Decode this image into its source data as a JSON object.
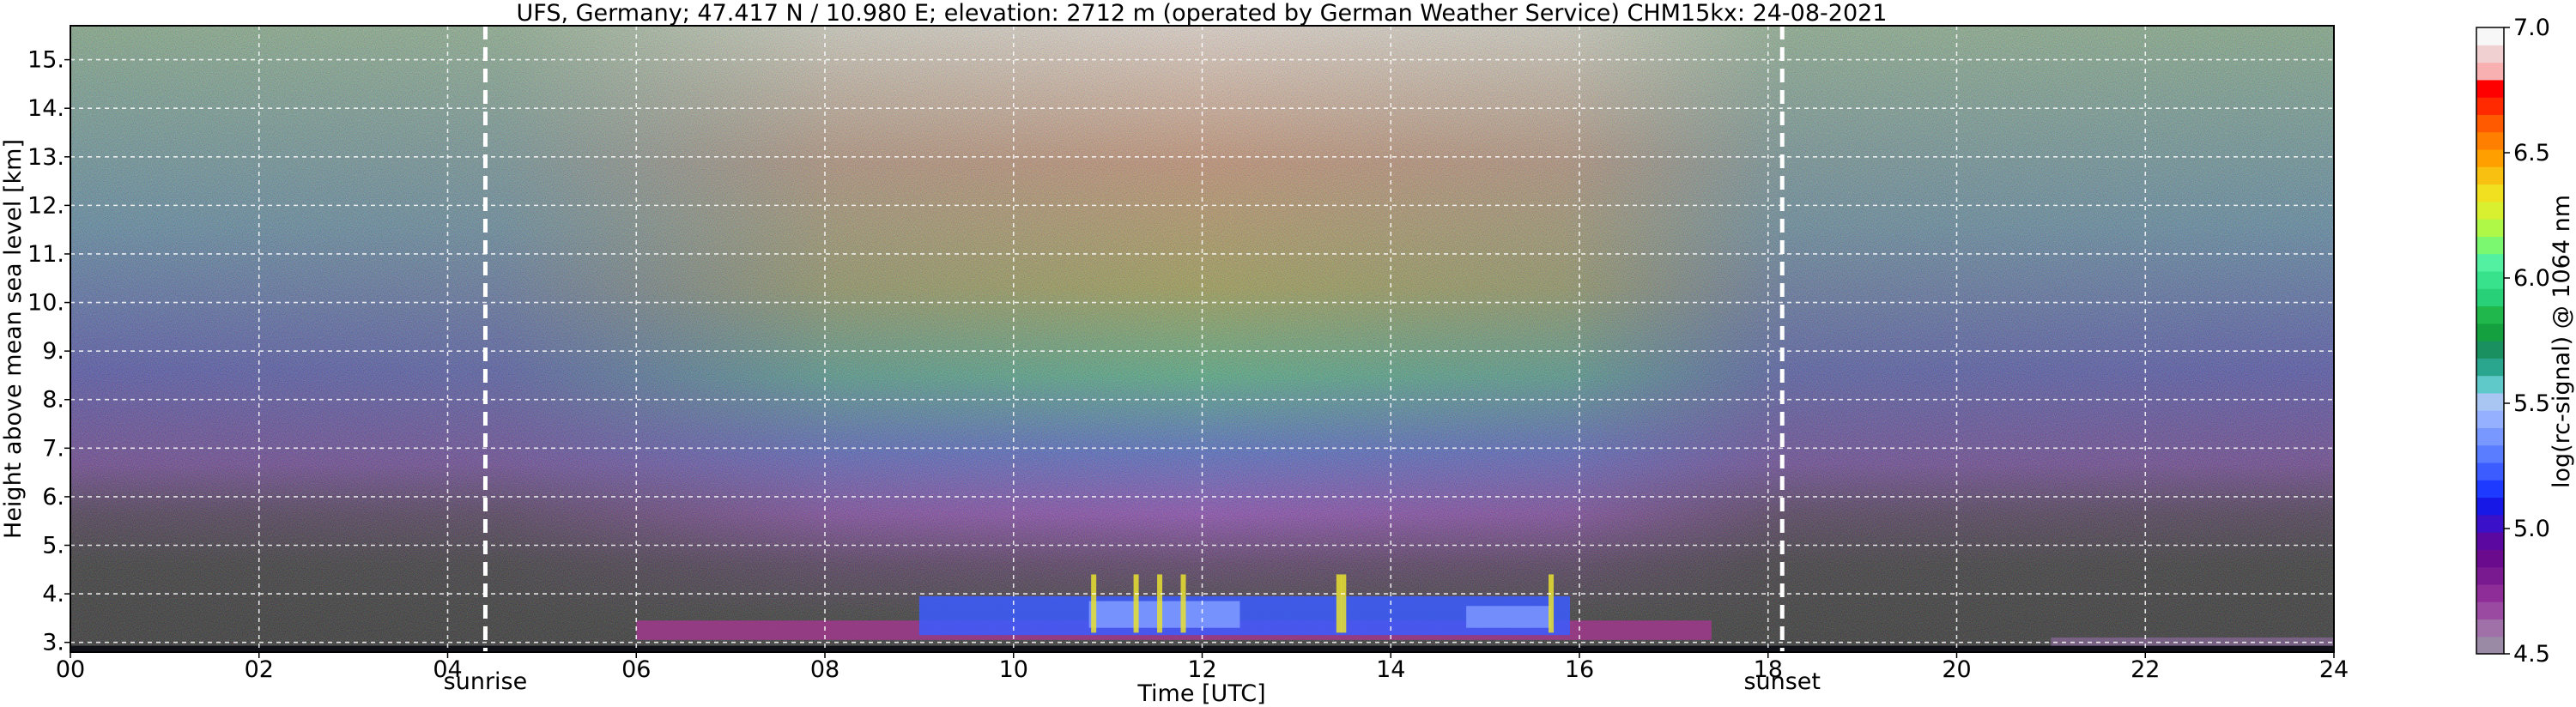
{
  "chart_data": {
    "type": "heatmap",
    "title": "UFS, Germany; 47.417 N / 10.980 E; elevation: 2712 m  (operated by German Weather Service)    CHM15kx: 24-08-2021",
    "xlabel": "Time [UTC]",
    "ylabel": "Height above mean sea level [km]",
    "xlim": [
      0,
      24
    ],
    "ylim": [
      2.8,
      15.7
    ],
    "x_ticks": [
      0,
      2,
      4,
      6,
      8,
      10,
      12,
      14,
      16,
      18,
      20,
      22,
      24
    ],
    "x_tick_labels": [
      "00",
      "02",
      "04",
      "06",
      "08",
      "10",
      "12",
      "14",
      "16",
      "18",
      "20",
      "22",
      "24"
    ],
    "y_ticks": [
      3,
      4,
      5,
      6,
      7,
      8,
      9,
      10,
      11,
      12,
      13,
      14,
      15
    ],
    "y_tick_labels": [
      "3.",
      "4.",
      "5.",
      "6.",
      "7.",
      "8.",
      "9.",
      "10.",
      "11.",
      "12.",
      "13.",
      "14.",
      "15."
    ],
    "grid": true,
    "events": [
      {
        "label": "sunrise",
        "time": 4.4
      },
      {
        "label": "sunset",
        "time": 18.15
      }
    ],
    "colorbar": {
      "label": "log(rc-signal) @ 1064 nm",
      "range": [
        4.5,
        7.0
      ],
      "tick_values": [
        4.5,
        5.0,
        5.5,
        6.0,
        6.5,
        7.0
      ],
      "tick_labels": [
        "4.5",
        "5.0",
        "5.5",
        "6.0",
        "6.5",
        "7.0"
      ],
      "colors": [
        "#9a8aa6",
        "#a070a8",
        "#9a4aa0",
        "#8f2d98",
        "#7a1a90",
        "#6a0a8c",
        "#5a08a0",
        "#3a10c8",
        "#1818e6",
        "#1f3aff",
        "#3c5cff",
        "#5a7cff",
        "#7898ff",
        "#94b0ff",
        "#a9c6f2",
        "#5fc8c8",
        "#2aa58e",
        "#1a9060",
        "#15a040",
        "#20b84c",
        "#28d078",
        "#38e28c",
        "#52f0a0",
        "#7cf870",
        "#b0f848",
        "#d8f030",
        "#f0e020",
        "#f8c010",
        "#ffa000",
        "#ff8000",
        "#ff5a00",
        "#ff2a00",
        "#ff0000",
        "#f8b0b0",
        "#f0d0d0",
        "#f7f7f7"
      ]
    }
  }
}
